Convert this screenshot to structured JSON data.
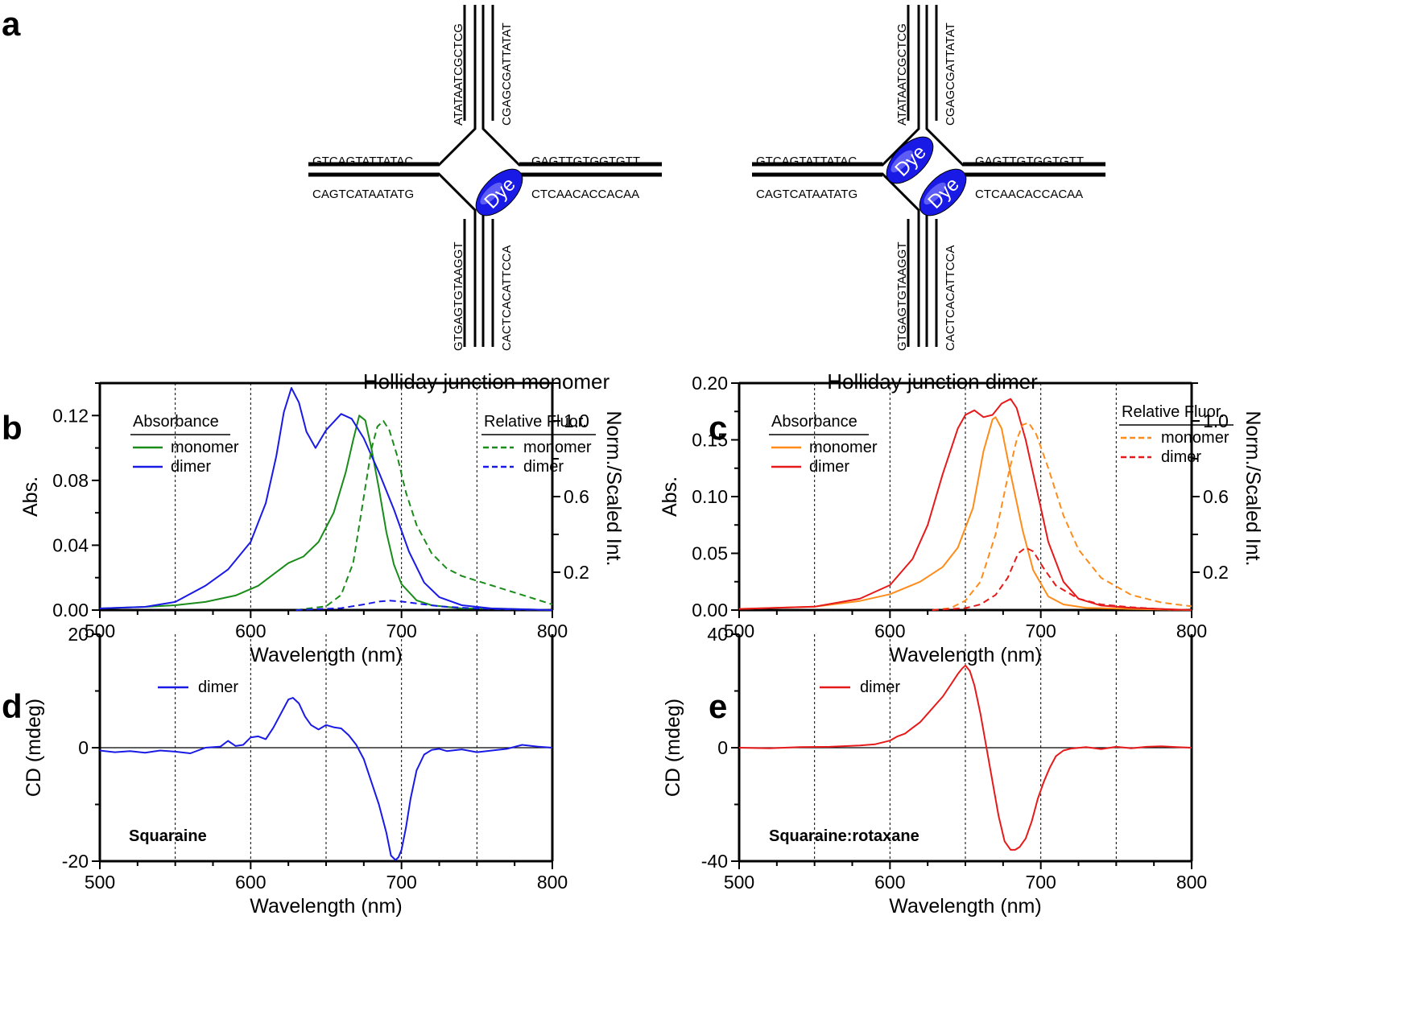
{
  "panel_labels": {
    "a": "a",
    "b": "b",
    "c": "c",
    "d": "d",
    "e": "e"
  },
  "diagram": {
    "monomer": {
      "caption": "Holliday junction monomer",
      "left_top": "GTCAGTATTATAC",
      "left_bottom": "CAGTCATAATATG",
      "right_top": "GAGTTGTGGTGTT",
      "right_bottom": "CTCAACACCACAA",
      "up_left": "ATATAATCGCTCG",
      "up_right": "CGAGCGATTATAT",
      "down_left": "GTGAGTGTAAGGT",
      "down_right": "CACTCACATTCCA",
      "dye_label": "Dye"
    },
    "dimer": {
      "caption": "Holliday junction dimer",
      "left_top": "GTCAGTATTATAC",
      "left_bottom": "CAGTCATAATATG",
      "right_top": "GAGTTGTGGTGTT",
      "right_bottom": "CTCAACACCACAA",
      "up_left": "ATATAATCGCTCG",
      "up_right": "CGAGCGATTATAT",
      "down_left": "GTGAGTGTAAGGT",
      "down_right": "CACTCACATTCCA",
      "dye_label": "Dye"
    }
  },
  "colors": {
    "green": "#1a8c1a",
    "blue": "#1a1ae6",
    "orange": "#ff8c1a",
    "red": "#e61a1a",
    "dye": "#1a1ae6"
  },
  "chart_data": [
    {
      "id": "b",
      "type": "line",
      "xlabel": "Wavelength (nm)",
      "ylabel": "Abs.",
      "y2label": "Norm./Scaled Int.",
      "xlim": [
        500,
        800
      ],
      "ylim": [
        0,
        0.14
      ],
      "y2lim": [
        0,
        1.2
      ],
      "yticks": [
        0,
        0.04,
        0.08,
        0.12
      ],
      "ytick_labels": [
        "0.00",
        "0.04",
        "0.08",
        "0.12"
      ],
      "y2ticks": [
        0.2,
        0.6,
        1.0
      ],
      "y2tick_labels": [
        "0.2",
        "0.6",
        "1.0"
      ],
      "xticks": [
        500,
        600,
        700,
        800
      ],
      "xtick_labels": [
        "500",
        "600",
        "700",
        "800"
      ],
      "vlines": [
        550,
        600,
        650,
        700,
        750
      ],
      "legend_abs": {
        "title": "Absorbance",
        "items": [
          "monomer",
          "dimer"
        ]
      },
      "legend_fl": {
        "title": "Relative Fluor.",
        "items": [
          "monomer",
          "dimer"
        ]
      },
      "series": [
        {
          "name": "monomer",
          "kind": "absorbance",
          "color": "green",
          "dash": false,
          "x": [
            500,
            530,
            550,
            570,
            590,
            605,
            615,
            625,
            635,
            645,
            655,
            663,
            668,
            672,
            676,
            680,
            685,
            690,
            695,
            700,
            710,
            720,
            740,
            760,
            800
          ],
          "y": [
            0.001,
            0.002,
            0.003,
            0.005,
            0.009,
            0.015,
            0.022,
            0.029,
            0.033,
            0.042,
            0.06,
            0.085,
            0.105,
            0.12,
            0.117,
            0.1,
            0.075,
            0.048,
            0.028,
            0.016,
            0.006,
            0.003,
            0.001,
            0.001,
            0.0
          ]
        },
        {
          "name": "dimer",
          "kind": "absorbance",
          "color": "blue",
          "dash": false,
          "x": [
            500,
            530,
            550,
            570,
            585,
            600,
            610,
            617,
            622,
            627,
            632,
            637,
            643,
            650,
            660,
            667,
            675,
            685,
            695,
            705,
            715,
            725,
            740,
            760,
            800
          ],
          "y": [
            0.001,
            0.002,
            0.005,
            0.015,
            0.025,
            0.042,
            0.066,
            0.095,
            0.122,
            0.137,
            0.128,
            0.11,
            0.1,
            0.111,
            0.121,
            0.118,
            0.106,
            0.085,
            0.062,
            0.036,
            0.017,
            0.008,
            0.003,
            0.001,
            0.0
          ]
        },
        {
          "name": "monomer",
          "kind": "fluorescence",
          "color": "green",
          "dash": true,
          "x": [
            630,
            650,
            660,
            668,
            674,
            680,
            684,
            688,
            692,
            697,
            703,
            710,
            720,
            730,
            740,
            760,
            780,
            800
          ],
          "y": [
            0.0,
            0.02,
            0.08,
            0.25,
            0.55,
            0.85,
            0.97,
            1.0,
            0.95,
            0.82,
            0.62,
            0.45,
            0.3,
            0.22,
            0.18,
            0.13,
            0.08,
            0.03
          ]
        },
        {
          "name": "dimer",
          "kind": "fluorescence",
          "color": "blue",
          "dash": true,
          "x": [
            630,
            660,
            675,
            685,
            692,
            700,
            710,
            725,
            745,
            770,
            800
          ],
          "y": [
            0.0,
            0.01,
            0.03,
            0.045,
            0.05,
            0.045,
            0.035,
            0.02,
            0.01,
            0.004,
            0.0
          ]
        }
      ]
    },
    {
      "id": "c",
      "type": "line",
      "xlabel": "Wavelength (nm)",
      "ylabel": "Abs.",
      "y2label": "Norm./Scaled Int.",
      "xlim": [
        500,
        800
      ],
      "ylim": [
        0,
        0.2
      ],
      "y2lim": [
        0,
        1.2
      ],
      "yticks": [
        0,
        0.05,
        0.1,
        0.15,
        0.2
      ],
      "ytick_labels": [
        "0.00",
        "0.05",
        "0.10",
        "0.15",
        "0.20"
      ],
      "y2ticks": [
        0.2,
        0.6,
        1.0
      ],
      "y2tick_labels": [
        "0.2",
        "0.6",
        "1.0"
      ],
      "xticks": [
        500,
        600,
        700,
        800
      ],
      "xtick_labels": [
        "500",
        "600",
        "700",
        "800"
      ],
      "vlines": [
        550,
        600,
        650,
        700,
        750
      ],
      "legend_abs": {
        "title": "Absorbance",
        "items": [
          "monomer",
          "dimer"
        ]
      },
      "legend_fl": {
        "title": "Relative Fluor.",
        "items": [
          "monomer",
          "dimer"
        ]
      },
      "series": [
        {
          "name": "monomer",
          "kind": "absorbance",
          "color": "orange",
          "dash": false,
          "x": [
            500,
            550,
            580,
            600,
            620,
            635,
            645,
            655,
            662,
            668,
            670,
            674,
            680,
            688,
            695,
            705,
            715,
            730,
            760,
            800
          ],
          "y": [
            0.001,
            0.003,
            0.008,
            0.014,
            0.025,
            0.038,
            0.055,
            0.09,
            0.14,
            0.168,
            0.17,
            0.16,
            0.12,
            0.07,
            0.035,
            0.012,
            0.005,
            0.002,
            0.001,
            0.0
          ]
        },
        {
          "name": "dimer",
          "kind": "absorbance",
          "color": "red",
          "dash": false,
          "x": [
            500,
            550,
            580,
            600,
            615,
            625,
            635,
            645,
            650,
            656,
            662,
            668,
            674,
            680,
            684,
            690,
            695,
            700,
            705,
            715,
            725,
            740,
            760,
            800
          ],
          "y": [
            0.001,
            0.003,
            0.01,
            0.022,
            0.045,
            0.075,
            0.12,
            0.16,
            0.172,
            0.176,
            0.17,
            0.172,
            0.182,
            0.186,
            0.178,
            0.15,
            0.12,
            0.09,
            0.06,
            0.025,
            0.01,
            0.004,
            0.002,
            0.0
          ]
        },
        {
          "name": "monomer",
          "kind": "fluorescence",
          "color": "orange",
          "dash": true,
          "x": [
            628,
            640,
            650,
            660,
            670,
            678,
            684,
            688,
            692,
            697,
            705,
            715,
            725,
            740,
            760,
            780,
            800
          ],
          "y": [
            0.0,
            0.01,
            0.05,
            0.15,
            0.4,
            0.7,
            0.9,
            0.98,
            0.99,
            0.93,
            0.75,
            0.5,
            0.32,
            0.17,
            0.08,
            0.04,
            0.02
          ]
        },
        {
          "name": "dimer",
          "kind": "fluorescence",
          "color": "red",
          "dash": true,
          "x": [
            628,
            650,
            660,
            670,
            678,
            685,
            690,
            695,
            702,
            710,
            725,
            740,
            760,
            780,
            790
          ],
          "y": [
            0.0,
            0.01,
            0.03,
            0.08,
            0.17,
            0.3,
            0.33,
            0.31,
            0.22,
            0.13,
            0.06,
            0.03,
            0.015,
            0.005,
            0.0
          ]
        }
      ]
    },
    {
      "id": "d",
      "type": "line",
      "xlabel": "Wavelength (nm)",
      "ylabel": "CD (mdeg)",
      "xlim": [
        500,
        800
      ],
      "ylim": [
        -20,
        20
      ],
      "yticks": [
        -20,
        0,
        20
      ],
      "ytick_labels": [
        "-20",
        "0",
        "20"
      ],
      "xticks": [
        500,
        600,
        700,
        800
      ],
      "xtick_labels": [
        "500",
        "600",
        "700",
        "800"
      ],
      "vlines": [
        550,
        600,
        650,
        700,
        750
      ],
      "legend": {
        "items": [
          "dimer"
        ]
      },
      "annotation": "Squaraine",
      "series": [
        {
          "name": "dimer",
          "color": "blue",
          "x": [
            500,
            510,
            520,
            530,
            540,
            550,
            560,
            570,
            580,
            585,
            590,
            595,
            600,
            605,
            610,
            615,
            620,
            625,
            628,
            632,
            636,
            640,
            645,
            650,
            655,
            660,
            665,
            670,
            675,
            680,
            685,
            690,
            693,
            696,
            698,
            700,
            703,
            706,
            710,
            715,
            720,
            725,
            730,
            740,
            750,
            760,
            770,
            780,
            790,
            800
          ],
          "y": [
            -0.5,
            -0.8,
            -0.6,
            -0.9,
            -0.5,
            -0.7,
            -1,
            0,
            0.2,
            1.2,
            0.3,
            0.5,
            1.8,
            2,
            1.5,
            3.5,
            6,
            8.5,
            8.8,
            7.8,
            5.5,
            4,
            3.2,
            4,
            3.6,
            3.4,
            2.2,
            0.5,
            -2,
            -6,
            -10,
            -15,
            -19,
            -19.8,
            -19.3,
            -18,
            -14,
            -9,
            -4,
            -1.2,
            -0.4,
            -0.2,
            -0.6,
            -0.3,
            -0.8,
            -0.5,
            -0.2,
            0.5,
            0.2,
            0
          ]
        }
      ]
    },
    {
      "id": "e",
      "type": "line",
      "xlabel": "Wavelength (nm)",
      "ylabel": "CD (mdeg)",
      "xlim": [
        500,
        800
      ],
      "ylim": [
        -40,
        40
      ],
      "yticks": [
        -40,
        0,
        40
      ],
      "ytick_labels": [
        "-40",
        "0",
        "40"
      ],
      "xticks": [
        500,
        600,
        700,
        800
      ],
      "xtick_labels": [
        "500",
        "600",
        "700",
        "800"
      ],
      "vlines": [
        550,
        600,
        650,
        700,
        750
      ],
      "legend": {
        "items": [
          "dimer"
        ]
      },
      "annotation": "Squaraine:rotaxane",
      "series": [
        {
          "name": "dimer",
          "color": "red",
          "x": [
            500,
            520,
            540,
            560,
            580,
            590,
            600,
            605,
            610,
            615,
            620,
            625,
            630,
            635,
            640,
            645,
            648,
            650,
            653,
            656,
            660,
            664,
            668,
            672,
            676,
            680,
            683,
            686,
            690,
            694,
            698,
            702,
            706,
            710,
            715,
            720,
            730,
            740,
            750,
            760,
            770,
            780,
            790,
            800
          ],
          "y": [
            0,
            -0.2,
            0.2,
            0.3,
            0.8,
            1.2,
            2.5,
            4,
            5,
            7,
            9,
            12,
            15,
            18,
            22,
            26,
            28,
            29,
            27,
            22,
            12,
            0,
            -12,
            -24,
            -33,
            -36,
            -36,
            -35,
            -32,
            -26,
            -18,
            -12,
            -7,
            -3,
            -1,
            -0.3,
            0.2,
            -0.5,
            0.3,
            -0.2,
            0.3,
            0.5,
            0.2,
            0
          ]
        }
      ]
    }
  ]
}
